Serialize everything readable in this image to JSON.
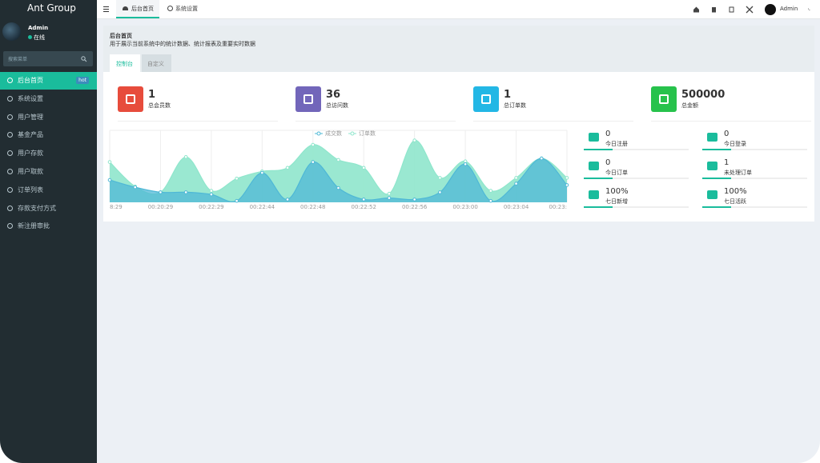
{
  "header": {
    "brand": "Ant Group",
    "tabs": [
      "后台首页",
      "系统设置"
    ],
    "user": "Admin"
  },
  "sidebar": {
    "user": "Admin",
    "status": "在线",
    "search_placeholder": "搜索菜单",
    "menu": [
      {
        "label": "后台首页",
        "badge": "hot"
      },
      {
        "label": "系统设置"
      },
      {
        "label": "用户管理"
      },
      {
        "label": "基金产品"
      },
      {
        "label": "用户存款"
      },
      {
        "label": "用户取款"
      },
      {
        "label": "订单列表"
      },
      {
        "label": "存款支付方式"
      },
      {
        "label": "新注册审批"
      }
    ]
  },
  "page": {
    "title": "后台首页",
    "description": "用于展示当前系统中的统计数据、统计报表及重要实时数据",
    "tabs": [
      "控制台",
      "自定义"
    ]
  },
  "stats": [
    {
      "value": 1,
      "label": "总会员数",
      "color": "#e74c3c"
    },
    {
      "value": 36,
      "label": "总访问数",
      "color": "#7266ba"
    },
    {
      "value": 1,
      "label": "总订单数",
      "color": "#23b7e5"
    },
    {
      "value": 500000,
      "label": "总金额",
      "color": "#27c24c"
    }
  ],
  "mini_stats": [
    {
      "value": 0,
      "label": "今日注册"
    },
    {
      "value": 0,
      "label": "今日登录"
    },
    {
      "value": 0,
      "label": "今日订单"
    },
    {
      "value": 1,
      "label": "未处理订单"
    },
    {
      "value": "100%",
      "label": "七日新增"
    },
    {
      "value": "100%",
      "label": "七日活跃"
    }
  ],
  "chart_data": {
    "type": "area",
    "categories": [
      "8:29",
      null,
      "00:20:29",
      null,
      "00:22:29",
      null,
      "00:22:44",
      null,
      "00:22:48",
      null,
      "00:22:52",
      null,
      "00:22:56",
      null,
      "00:23:00",
      null,
      "00:23:04",
      null,
      "00:23:"
    ],
    "series": [
      {
        "name": "成交数",
        "color": "#4fb8d6",
        "values": [
          31,
          21,
          14,
          14,
          11,
          2,
          41,
          4,
          56,
          20,
          4,
          6,
          4,
          14,
          53,
          2,
          26,
          61,
          24
        ]
      },
      {
        "name": "订单数",
        "color": "#8fe6cc",
        "values": [
          56,
          22,
          14,
          63,
          16,
          33,
          43,
          48,
          80,
          59,
          48,
          12,
          86,
          34,
          57,
          16,
          34,
          61,
          34
        ]
      }
    ],
    "ylim": [
      0,
      100
    ],
    "grid": true
  }
}
